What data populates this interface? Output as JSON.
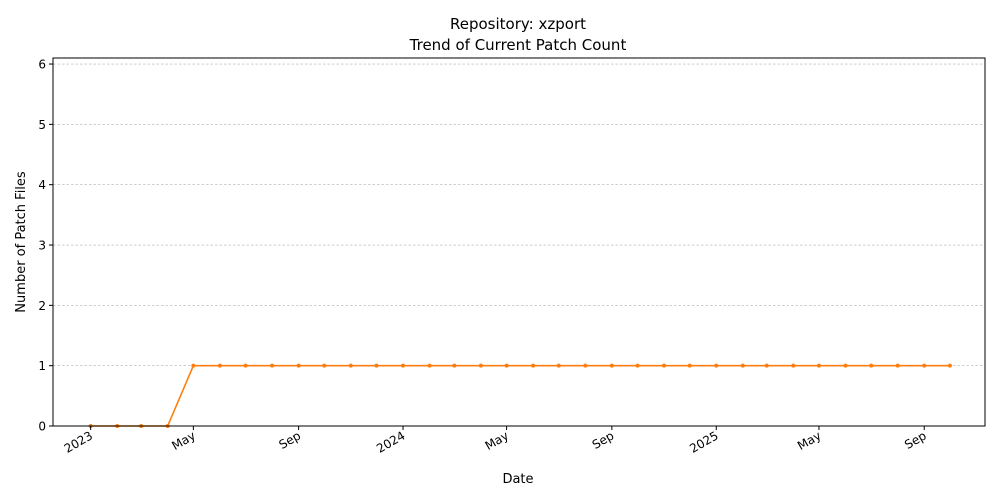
{
  "chart_data": {
    "type": "line",
    "title_line1": "Repository: xzport",
    "title_line2": "Trend of Current Patch Count",
    "xlabel": "Date",
    "ylabel": "Number of Patch Files",
    "ylim": [
      0,
      6.1
    ],
    "yticks": [
      0,
      1,
      2,
      3,
      4,
      5,
      6
    ],
    "xlim": [
      "2022-11-18",
      "2025-11-11"
    ],
    "xticks": [
      {
        "date": "2023-01-01",
        "label": "2023"
      },
      {
        "date": "2023-05-01",
        "label": "May"
      },
      {
        "date": "2023-09-01",
        "label": "Sep"
      },
      {
        "date": "2024-01-01",
        "label": "2024"
      },
      {
        "date": "2024-05-01",
        "label": "May"
      },
      {
        "date": "2024-09-01",
        "label": "Sep"
      },
      {
        "date": "2025-01-01",
        "label": "2025"
      },
      {
        "date": "2025-05-01",
        "label": "May"
      },
      {
        "date": "2025-09-01",
        "label": "Sep"
      }
    ],
    "grid": "y-only dashed",
    "series": [
      {
        "color": "#ff7f0e",
        "x": [
          "2023-01-01",
          "2023-02-01",
          "2023-03-01",
          "2023-04-01",
          "2023-05-01",
          "2023-06-01",
          "2023-07-01",
          "2023-08-01",
          "2023-09-01",
          "2023-10-01",
          "2023-11-01",
          "2023-12-01",
          "2024-01-01",
          "2024-02-01",
          "2024-03-01",
          "2024-04-01",
          "2024-05-01",
          "2024-06-01",
          "2024-07-01",
          "2024-08-01",
          "2024-09-01",
          "2024-10-01",
          "2024-11-01",
          "2024-12-01",
          "2025-01-01",
          "2025-02-01",
          "2025-03-01",
          "2025-04-01",
          "2025-05-01",
          "2025-06-01",
          "2025-07-01",
          "2025-08-01",
          "2025-09-01",
          "2025-10-01"
        ],
        "values": [
          0,
          0,
          0,
          0,
          1,
          1,
          1,
          1,
          1,
          1,
          1,
          1,
          1,
          1,
          1,
          1,
          1,
          1,
          1,
          1,
          1,
          1,
          1,
          1,
          1,
          1,
          1,
          1,
          1,
          1,
          1,
          1,
          1,
          1
        ]
      }
    ]
  }
}
